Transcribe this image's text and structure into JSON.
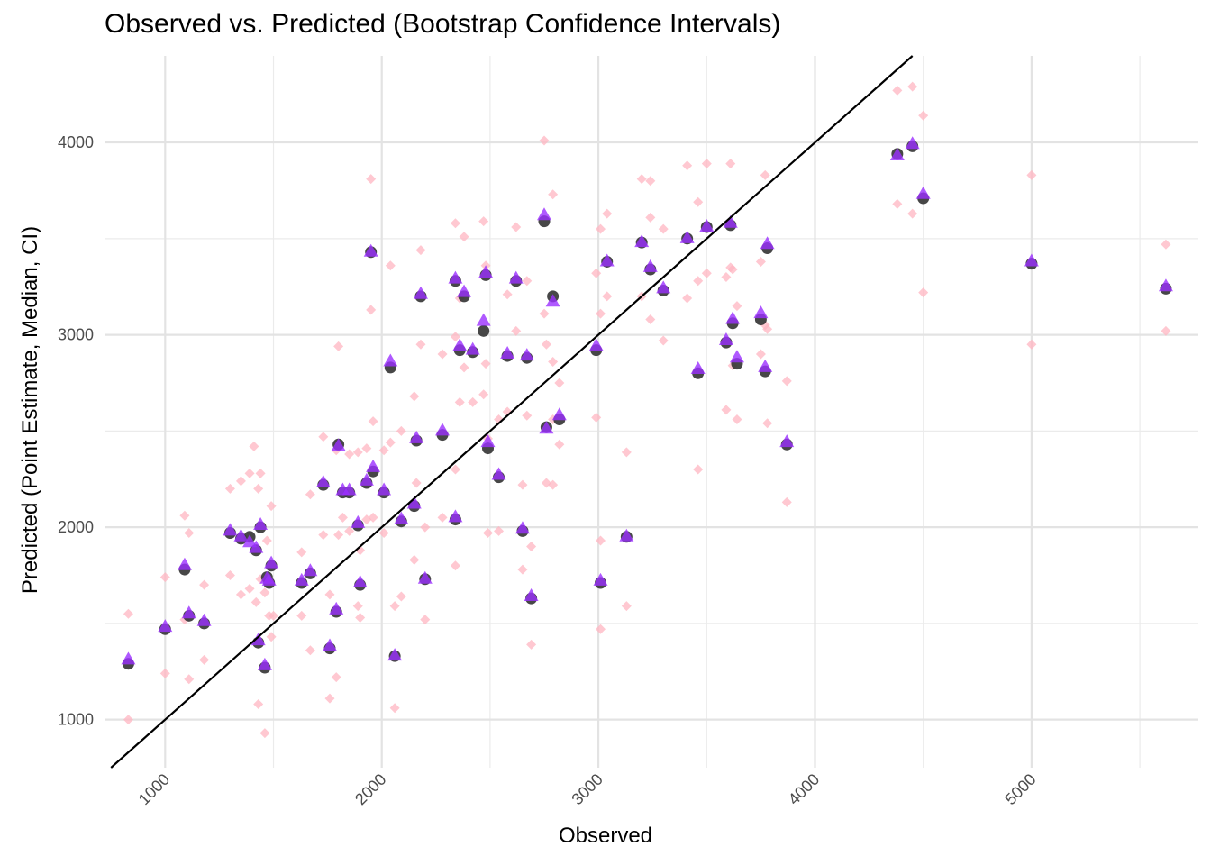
{
  "chart_data": {
    "type": "scatter",
    "title": "Observed vs. Predicted (Bootstrap Confidence Intervals)",
    "xlabel": "Observed",
    "ylabel": "Predicted (Point Estimate, Median, CI)",
    "xlim": [
      720,
      5770
    ],
    "ylim": [
      750,
      4450
    ],
    "x_ticks": [
      1000,
      2000,
      3000,
      4000,
      5000
    ],
    "y_ticks": [
      1000,
      2000,
      3000,
      4000
    ],
    "grid": true,
    "reference_line": {
      "slope": 1,
      "intercept": 0,
      "color": "#000000"
    },
    "series": [
      {
        "marker": "circle",
        "color": "#333333",
        "points": [
          [
            830,
            1290
          ],
          [
            1000,
            1470
          ],
          [
            1090,
            1780
          ],
          [
            1110,
            1540
          ],
          [
            1180,
            1500
          ],
          [
            1300,
            1970
          ],
          [
            1350,
            1940
          ],
          [
            1390,
            1950
          ],
          [
            1420,
            1880
          ],
          [
            1430,
            1400
          ],
          [
            1440,
            2000
          ],
          [
            1460,
            1270
          ],
          [
            1470,
            1740
          ],
          [
            1480,
            1710
          ],
          [
            1490,
            1800
          ],
          [
            1630,
            1710
          ],
          [
            1670,
            1760
          ],
          [
            1730,
            2220
          ],
          [
            1760,
            1370
          ],
          [
            1790,
            1560
          ],
          [
            1800,
            2430
          ],
          [
            1820,
            2180
          ],
          [
            1850,
            2180
          ],
          [
            1890,
            2010
          ],
          [
            1900,
            1700
          ],
          [
            1930,
            2230
          ],
          [
            1950,
            3430
          ],
          [
            1960,
            2290
          ],
          [
            2010,
            2180
          ],
          [
            2040,
            2830
          ],
          [
            2060,
            1330
          ],
          [
            2090,
            2030
          ],
          [
            2150,
            2110
          ],
          [
            2160,
            2450
          ],
          [
            2180,
            3200
          ],
          [
            2200,
            1730
          ],
          [
            2280,
            2480
          ],
          [
            2340,
            3280
          ],
          [
            2340,
            2040
          ],
          [
            2360,
            2920
          ],
          [
            2380,
            3200
          ],
          [
            2420,
            2910
          ],
          [
            2470,
            3020
          ],
          [
            2480,
            3310
          ],
          [
            2490,
            2410
          ],
          [
            2540,
            2260
          ],
          [
            2580,
            2890
          ],
          [
            2620,
            3280
          ],
          [
            2650,
            1980
          ],
          [
            2670,
            2880
          ],
          [
            2690,
            1630
          ],
          [
            2750,
            3590
          ],
          [
            2760,
            2520
          ],
          [
            2790,
            3200
          ],
          [
            2820,
            2560
          ],
          [
            2990,
            2920
          ],
          [
            3010,
            1710
          ],
          [
            3040,
            3380
          ],
          [
            3130,
            1950
          ],
          [
            3200,
            3480
          ],
          [
            3240,
            3340
          ],
          [
            3300,
            3230
          ],
          [
            3410,
            3500
          ],
          [
            3460,
            2800
          ],
          [
            3500,
            3560
          ],
          [
            3590,
            2960
          ],
          [
            3610,
            3570
          ],
          [
            3620,
            3060
          ],
          [
            3640,
            2850
          ],
          [
            3750,
            3080
          ],
          [
            3770,
            2810
          ],
          [
            3780,
            3450
          ],
          [
            3870,
            2430
          ],
          [
            4380,
            3940
          ],
          [
            4450,
            3980
          ],
          [
            4500,
            3710
          ],
          [
            5000,
            3370
          ],
          [
            5620,
            3240
          ]
        ]
      },
      {
        "marker": "triangle",
        "color": "#9b30ff",
        "points": [
          [
            830,
            1310
          ],
          [
            1000,
            1480
          ],
          [
            1090,
            1800
          ],
          [
            1110,
            1550
          ],
          [
            1180,
            1510
          ],
          [
            1300,
            1980
          ],
          [
            1350,
            1950
          ],
          [
            1390,
            1920
          ],
          [
            1420,
            1890
          ],
          [
            1430,
            1410
          ],
          [
            1440,
            2010
          ],
          [
            1460,
            1280
          ],
          [
            1470,
            1730
          ],
          [
            1480,
            1720
          ],
          [
            1490,
            1810
          ],
          [
            1630,
            1720
          ],
          [
            1670,
            1770
          ],
          [
            1730,
            2230
          ],
          [
            1760,
            1380
          ],
          [
            1790,
            1570
          ],
          [
            1800,
            2420
          ],
          [
            1820,
            2190
          ],
          [
            1850,
            2190
          ],
          [
            1890,
            2020
          ],
          [
            1900,
            1710
          ],
          [
            1930,
            2240
          ],
          [
            1950,
            3430
          ],
          [
            1960,
            2310
          ],
          [
            2010,
            2190
          ],
          [
            2040,
            2860
          ],
          [
            2060,
            1330
          ],
          [
            2090,
            2040
          ],
          [
            2150,
            2120
          ],
          [
            2160,
            2460
          ],
          [
            2180,
            3210
          ],
          [
            2200,
            1730
          ],
          [
            2280,
            2500
          ],
          [
            2340,
            3290
          ],
          [
            2340,
            2050
          ],
          [
            2360,
            2940
          ],
          [
            2380,
            3220
          ],
          [
            2420,
            2920
          ],
          [
            2470,
            3070
          ],
          [
            2480,
            3320
          ],
          [
            2490,
            2440
          ],
          [
            2540,
            2270
          ],
          [
            2580,
            2900
          ],
          [
            2620,
            3290
          ],
          [
            2650,
            1990
          ],
          [
            2670,
            2890
          ],
          [
            2690,
            1640
          ],
          [
            2750,
            3620
          ],
          [
            2760,
            2510
          ],
          [
            2790,
            3170
          ],
          [
            2820,
            2580
          ],
          [
            2990,
            2940
          ],
          [
            3010,
            1720
          ],
          [
            3040,
            3380
          ],
          [
            3130,
            1950
          ],
          [
            3200,
            3480
          ],
          [
            3240,
            3350
          ],
          [
            3300,
            3240
          ],
          [
            3410,
            3500
          ],
          [
            3460,
            2820
          ],
          [
            3500,
            3560
          ],
          [
            3590,
            2970
          ],
          [
            3610,
            3580
          ],
          [
            3620,
            3080
          ],
          [
            3640,
            2880
          ],
          [
            3750,
            3110
          ],
          [
            3770,
            2830
          ],
          [
            3780,
            3470
          ],
          [
            3870,
            2440
          ],
          [
            4380,
            3930
          ],
          [
            4450,
            3990
          ],
          [
            4500,
            3730
          ],
          [
            5000,
            3380
          ],
          [
            5620,
            3250
          ]
        ]
      },
      {
        "marker": "diamond",
        "color": "#ffb6c1",
        "points": [
          [
            830,
            1550
          ],
          [
            830,
            1000
          ],
          [
            1000,
            1740
          ],
          [
            1000,
            1240
          ],
          [
            1090,
            2060
          ],
          [
            1090,
            1520
          ],
          [
            1110,
            1970
          ],
          [
            1110,
            1210
          ],
          [
            1180,
            1700
          ],
          [
            1180,
            1310
          ],
          [
            1300,
            2200
          ],
          [
            1300,
            1750
          ],
          [
            1350,
            2240
          ],
          [
            1350,
            1650
          ],
          [
            1390,
            2280
          ],
          [
            1390,
            1680
          ],
          [
            1410,
            2420
          ],
          [
            1420,
            1610
          ],
          [
            1430,
            2200
          ],
          [
            1430,
            1080
          ],
          [
            1440,
            2280
          ],
          [
            1440,
            1730
          ],
          [
            1460,
            930
          ],
          [
            1460,
            1660
          ],
          [
            1470,
            1930
          ],
          [
            1480,
            1540
          ],
          [
            1490,
            2110
          ],
          [
            1490,
            1430
          ],
          [
            1500,
            1540
          ],
          [
            1630,
            1870
          ],
          [
            1630,
            1540
          ],
          [
            1670,
            2170
          ],
          [
            1670,
            1360
          ],
          [
            1730,
            2470
          ],
          [
            1730,
            1960
          ],
          [
            1760,
            1650
          ],
          [
            1760,
            1110
          ],
          [
            1790,
            2400
          ],
          [
            1790,
            1220
          ],
          [
            1800,
            2940
          ],
          [
            1800,
            1960
          ],
          [
            1820,
            2050
          ],
          [
            1850,
            2380
          ],
          [
            1850,
            1980
          ],
          [
            1890,
            2390
          ],
          [
            1890,
            1590
          ],
          [
            1900,
            1880
          ],
          [
            1900,
            1530
          ],
          [
            1930,
            2410
          ],
          [
            1930,
            2040
          ],
          [
            1950,
            3810
          ],
          [
            1950,
            3130
          ],
          [
            1960,
            2550
          ],
          [
            1960,
            2050
          ],
          [
            2010,
            2400
          ],
          [
            2010,
            1970
          ],
          [
            2040,
            3360
          ],
          [
            2040,
            2440
          ],
          [
            2060,
            1590
          ],
          [
            2060,
            1060
          ],
          [
            2090,
            2500
          ],
          [
            2090,
            1640
          ],
          [
            2150,
            2680
          ],
          [
            2150,
            1830
          ],
          [
            2160,
            2450
          ],
          [
            2160,
            2230
          ],
          [
            2180,
            3440
          ],
          [
            2180,
            2950
          ],
          [
            2200,
            2000
          ],
          [
            2200,
            1520
          ],
          [
            2280,
            2900
          ],
          [
            2280,
            2050
          ],
          [
            2340,
            3580
          ],
          [
            2340,
            2990
          ],
          [
            2340,
            2300
          ],
          [
            2340,
            1800
          ],
          [
            2360,
            3190
          ],
          [
            2360,
            2650
          ],
          [
            2380,
            3510
          ],
          [
            2380,
            2830
          ],
          [
            2420,
            2920
          ],
          [
            2420,
            2650
          ],
          [
            2470,
            3590
          ],
          [
            2470,
            2690
          ],
          [
            2480,
            3360
          ],
          [
            2480,
            2850
          ],
          [
            2490,
            2460
          ],
          [
            2490,
            1970
          ],
          [
            2540,
            2560
          ],
          [
            2540,
            1980
          ],
          [
            2580,
            3210
          ],
          [
            2580,
            2600
          ],
          [
            2620,
            3560
          ],
          [
            2620,
            3020
          ],
          [
            2650,
            2220
          ],
          [
            2650,
            1780
          ],
          [
            2670,
            3280
          ],
          [
            2670,
            2580
          ],
          [
            2690,
            1900
          ],
          [
            2690,
            1390
          ],
          [
            2750,
            4010
          ],
          [
            2750,
            3110
          ],
          [
            2760,
            2950
          ],
          [
            2760,
            2230
          ],
          [
            2790,
            3730
          ],
          [
            2790,
            2860
          ],
          [
            2790,
            2560
          ],
          [
            2790,
            2220
          ],
          [
            2820,
            2750
          ],
          [
            2820,
            2430
          ],
          [
            2990,
            3320
          ],
          [
            2990,
            2570
          ],
          [
            3010,
            3550
          ],
          [
            3010,
            3110
          ],
          [
            3010,
            1930
          ],
          [
            3010,
            1470
          ],
          [
            3040,
            3630
          ],
          [
            3040,
            3200
          ],
          [
            3130,
            2390
          ],
          [
            3130,
            1590
          ],
          [
            3200,
            3810
          ],
          [
            3200,
            3200
          ],
          [
            3240,
            3800
          ],
          [
            3240,
            3610
          ],
          [
            3240,
            3080
          ],
          [
            3300,
            3550
          ],
          [
            3300,
            2970
          ],
          [
            3410,
            3880
          ],
          [
            3410,
            3190
          ],
          [
            3460,
            3690
          ],
          [
            3460,
            3280
          ],
          [
            3460,
            2300
          ],
          [
            3500,
            3890
          ],
          [
            3500,
            3320
          ],
          [
            3590,
            3300
          ],
          [
            3590,
            2610
          ],
          [
            3610,
            3890
          ],
          [
            3610,
            3350
          ],
          [
            3620,
            3340
          ],
          [
            3620,
            2840
          ],
          [
            3640,
            3150
          ],
          [
            3640,
            2560
          ],
          [
            3750,
            3380
          ],
          [
            3750,
            2900
          ],
          [
            3770,
            3830
          ],
          [
            3770,
            3050
          ],
          [
            3780,
            3030
          ],
          [
            3780,
            2540
          ],
          [
            3870,
            2760
          ],
          [
            3870,
            2130
          ],
          [
            4380,
            4270
          ],
          [
            4380,
            3680
          ],
          [
            4450,
            4290
          ],
          [
            4450,
            3630
          ],
          [
            4500,
            4140
          ],
          [
            4500,
            3220
          ],
          [
            5000,
            3830
          ],
          [
            5000,
            2950
          ],
          [
            5620,
            3470
          ],
          [
            5620,
            3020
          ]
        ]
      }
    ]
  }
}
